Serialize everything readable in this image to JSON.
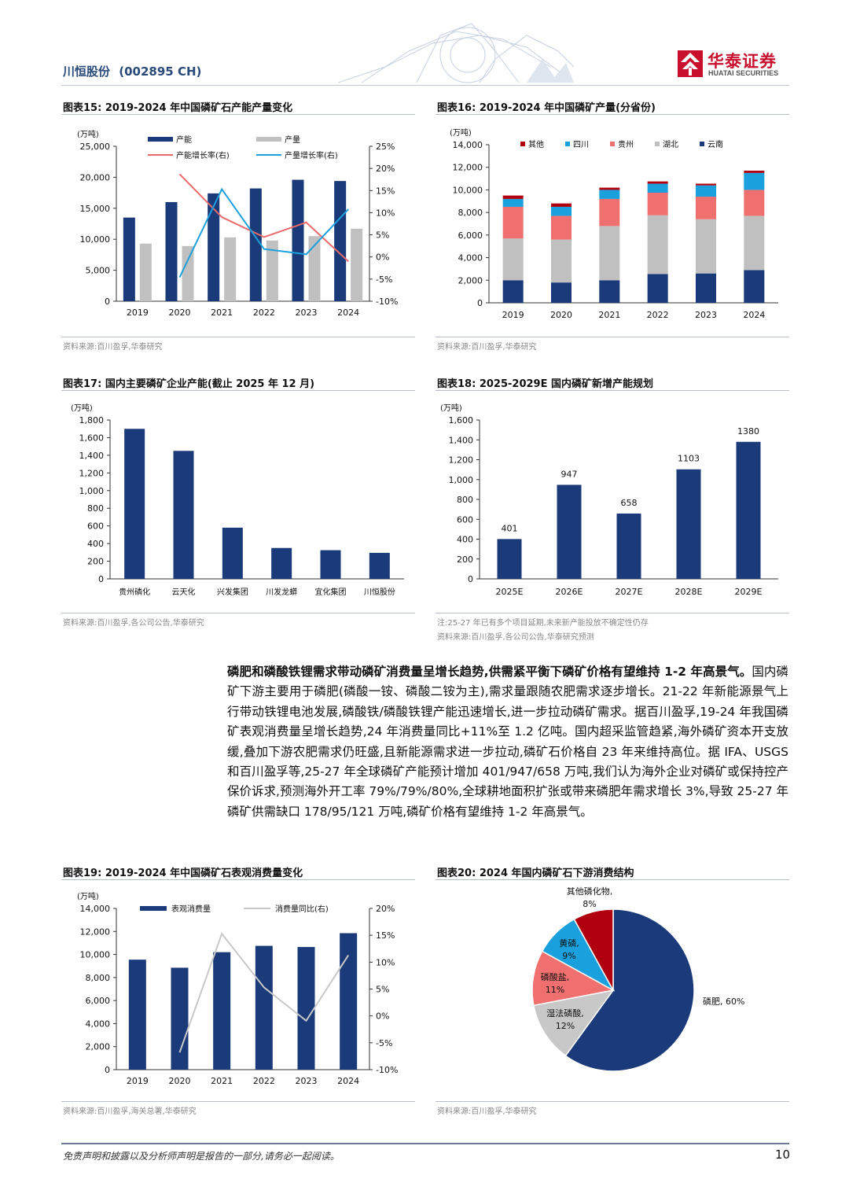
{
  "header": {
    "company": "川恒股份",
    "code": "(002895 CH)",
    "logo_cn": "华泰证券",
    "logo_en": "HUATAI SECURITIES"
  },
  "fig15": {
    "title": "图表15:  2019-2024 年中国磷矿石产能产量变化",
    "source": "资料来源:百川盈孚,华泰研究",
    "chart_data": {
      "type": "bar",
      "categories": [
        "2019",
        "2020",
        "2021",
        "2022",
        "2023",
        "2024"
      ],
      "unit_label": "(万吨)",
      "ylim": [
        0,
        25000
      ],
      "y_ticks": [
        "0",
        "5,000",
        "10,000",
        "15,000",
        "20,000",
        "25,000"
      ],
      "y2lim": [
        -10,
        25
      ],
      "y2_ticks": [
        "-10%",
        "-5%",
        "0%",
        "5%",
        "10%",
        "15%",
        "20%",
        "25%"
      ],
      "series": [
        {
          "name": "产能",
          "type": "bar",
          "color": "#1a3a7a",
          "values": [
            13500,
            16000,
            17400,
            18200,
            19600,
            19400
          ]
        },
        {
          "name": "产量",
          "type": "bar",
          "color": "#c0c0c0",
          "values": [
            9300,
            8900,
            10300,
            9800,
            10500,
            11700
          ]
        },
        {
          "name": "产能增长率(右)",
          "type": "line",
          "axis": "right",
          "color": "#e86a6a",
          "values": [
            null,
            18.7,
            9.0,
            4.5,
            7.8,
            -1.0
          ]
        },
        {
          "name": "产量增长率(右)",
          "type": "line",
          "axis": "right",
          "color": "#1aa0dc",
          "values": [
            null,
            -4.6,
            15.3,
            1.8,
            0.6,
            10.8
          ]
        }
      ]
    }
  },
  "fig16": {
    "title": "图表16:  2019-2024 年中国磷矿产量(分省份)",
    "source": "资料来源:百川盈孚,华泰研究",
    "chart_data": {
      "type": "bar",
      "stacked": true,
      "categories": [
        "2019",
        "2020",
        "2021",
        "2022",
        "2023",
        "2024"
      ],
      "unit_label": "(万吨)",
      "ylim": [
        0,
        14000
      ],
      "y_ticks": [
        "0",
        "2,000",
        "4,000",
        "6,000",
        "8,000",
        "10,000",
        "12,000",
        "14,000"
      ],
      "series": [
        {
          "name": "云南",
          "color": "#1a3a7a",
          "values": [
            2000,
            1800,
            2000,
            2550,
            2600,
            2900
          ]
        },
        {
          "name": "湖北",
          "color": "#c0c0c0",
          "values": [
            3700,
            3800,
            4800,
            5200,
            4800,
            4800
          ]
        },
        {
          "name": "贵州",
          "color": "#f07070",
          "values": [
            2800,
            2100,
            2400,
            2000,
            2000,
            2300
          ]
        },
        {
          "name": "四川",
          "color": "#1aa0dc",
          "values": [
            700,
            800,
            800,
            800,
            1000,
            1500
          ]
        },
        {
          "name": "其他",
          "color": "#b00010",
          "values": [
            300,
            300,
            200,
            200,
            150,
            200
          ]
        }
      ]
    }
  },
  "fig17": {
    "title": "图表17:  国内主要磷矿企业产能(截止 2025 年 12 月)",
    "source": "资料来源:百川盈孚,各公司公告,华泰研究",
    "chart_data": {
      "type": "bar",
      "categories": [
        "贵州磷化",
        "云天化",
        "兴发集团",
        "川发龙蟒",
        "宜化集团",
        "川恒股份"
      ],
      "unit_label": "(万吨)",
      "ylim": [
        0,
        1800
      ],
      "y_ticks": [
        "0",
        "200",
        "400",
        "600",
        "800",
        "1,000",
        "1,200",
        "1,400",
        "1,600",
        "1,800"
      ],
      "values": [
        1700,
        1450,
        580,
        350,
        325,
        295
      ],
      "color": "#1a3a7a"
    }
  },
  "fig18": {
    "title": "图表18:  2025-2029E 国内磷矿新增产能规划",
    "note": "注:25-27 年已有多个项目延期,未来新产能投放不确定性仍存",
    "source": "资料来源:百川盈孚,各公司公告,华泰研究预测",
    "chart_data": {
      "type": "bar",
      "categories": [
        "2025E",
        "2026E",
        "2027E",
        "2028E",
        "2029E"
      ],
      "unit_label": "(万吨)",
      "ylim": [
        0,
        1600
      ],
      "y_ticks": [
        "0",
        "200",
        "400",
        "600",
        "800",
        "1,000",
        "1,200",
        "1,400",
        "1,600"
      ],
      "values": [
        401,
        947,
        658,
        1103,
        1380
      ],
      "labels": [
        "401",
        "947",
        "658",
        "1103",
        "1380"
      ],
      "color": "#1a3a7a"
    }
  },
  "body": {
    "lead": "磷肥和磷酸铁锂需求带动磷矿消费量呈增长趋势,供需紧平衡下磷矿价格有望维持 1-2 年高景气。",
    "text": "国内磷矿下游主要用于磷肥(磷酸一铵、磷酸二铵为主),需求量跟随农肥需求逐步增长。21-22 年新能源景气上行带动铁锂电池发展,磷酸铁/磷酸铁锂产能迅速增长,进一步拉动磷矿需求。据百川盈孚,19-24 年我国磷矿表观消费量呈增长趋势,24 年消费量同比+11%至 1.2 亿吨。国内超采监管趋紧,海外磷矿资本开支放缓,叠加下游农肥需求仍旺盛,且新能源需求进一步拉动,磷矿石价格自 23 年来维持高位。据 IFA、USGS 和百川盈孚等,25-27 年全球磷矿产能预计增加 401/947/658 万吨,我们认为海外企业对磷矿或保持控产保价诉求,预测海外开工率 79%/79%/80%,全球耕地面积扩张或带来磷肥年需求增长 3%,导致 25-27 年磷矿供需缺口 178/95/121 万吨,磷矿价格有望维持 1-2 年高景气。"
  },
  "fig19": {
    "title": "图表19:  2019-2024 年中国磷矿石表观消费量变化",
    "source": "资料来源:百川盈孚,海关总署,华泰研究",
    "chart_data": {
      "type": "bar",
      "categories": [
        "2019",
        "2020",
        "2021",
        "2022",
        "2023",
        "2024"
      ],
      "unit_label": "(万吨)",
      "ylim": [
        0,
        14000
      ],
      "y_ticks": [
        "0",
        "2,000",
        "4,000",
        "6,000",
        "8,000",
        "10,000",
        "12,000",
        "14,000"
      ],
      "y2lim": [
        -10,
        20
      ],
      "y2_ticks": [
        "-10%",
        "-5%",
        "0%",
        "5%",
        "10%",
        "15%",
        "20%"
      ],
      "series": [
        {
          "name": "表观消费量",
          "type": "bar",
          "color": "#1a3a7a",
          "values": [
            9550,
            8850,
            10200,
            10750,
            10650,
            11850
          ]
        },
        {
          "name": "消费量同比(右)",
          "type": "line",
          "axis": "right",
          "color": "#c8c8c8",
          "values": [
            null,
            -6.8,
            15.3,
            5.3,
            -0.9,
            11.3
          ]
        }
      ]
    }
  },
  "fig20": {
    "title": "图表20:  2024 年国内磷矿石下游消费结构",
    "source": "资料来源:百川盈孚,华泰研究",
    "chart_data": {
      "type": "pie",
      "slices": [
        {
          "name": "磷肥",
          "value": 60,
          "color": "#1a3a7a",
          "label": "磷肥, 60%"
        },
        {
          "name": "湿法磷酸",
          "value": 12,
          "color": "#c8c8c8",
          "label": "湿法磷酸,",
          "pct": "12%"
        },
        {
          "name": "磷酸盐",
          "value": 11,
          "color": "#f07070",
          "label": "磷酸盐,",
          "pct": "11%"
        },
        {
          "name": "黄磷",
          "value": 9,
          "color": "#1aa0dc",
          "label": "黄磷,",
          "pct": "9%"
        },
        {
          "name": "其他磷化物",
          "value": 8,
          "color": "#b00010",
          "label": "其他磷化物,",
          "pct": "8%"
        }
      ]
    }
  },
  "footer": {
    "disclaimer": "免责声明和披露以及分析师声明是报告的一部分,请务必一起阅读。",
    "page": "10"
  }
}
